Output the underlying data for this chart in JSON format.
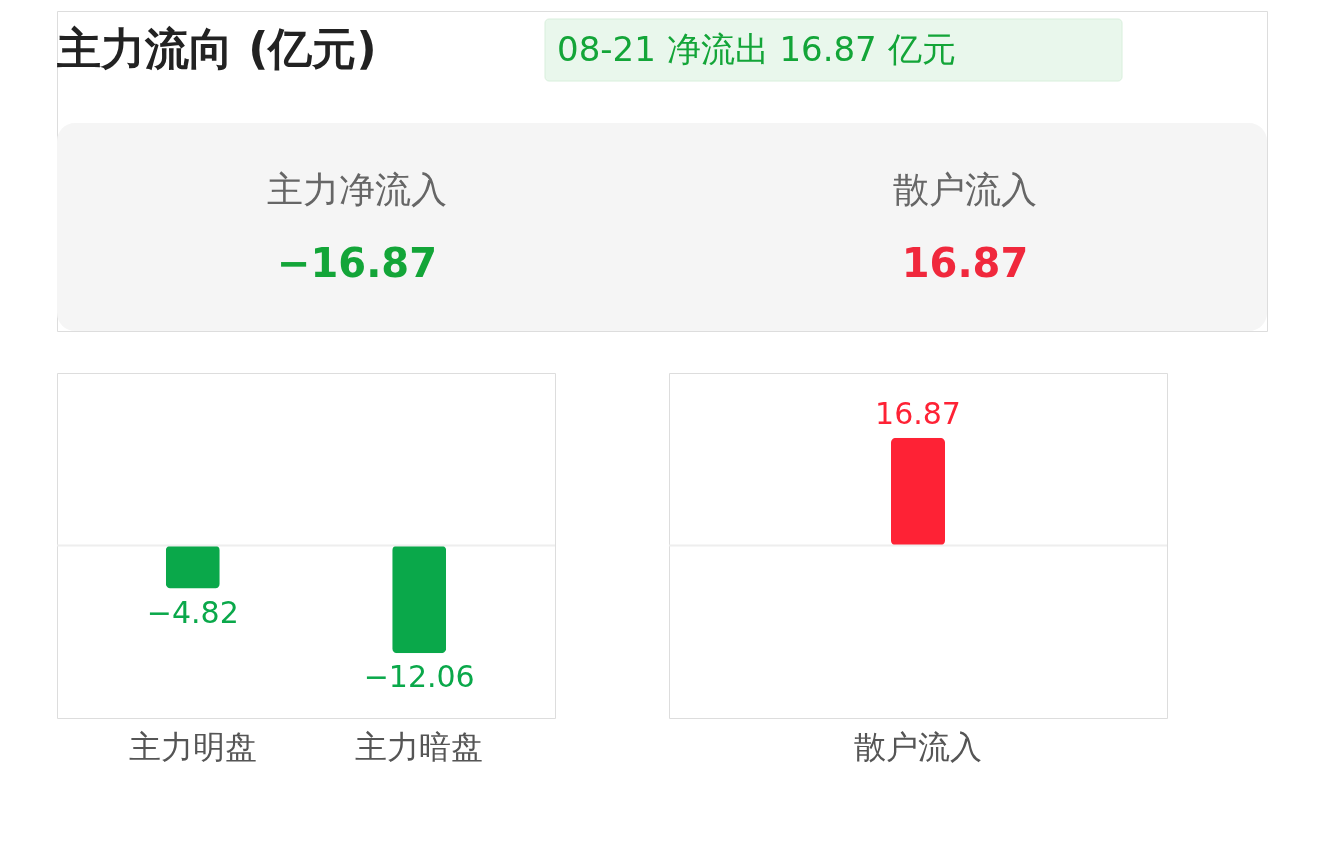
{
  "chart_data": [
    {
      "type": "other",
      "title": "主力流向 (亿元)",
      "annotations": [
        "08-21 净流出 16.87 亿元",
        "主力净流入",
        "−16.87",
        "散户流入",
        "16.87"
      ]
    },
    {
      "type": "bar",
      "categories": [
        "主力明盘",
        "主力暗盘"
      ],
      "values": [
        -4.82,
        -12.06
      ],
      "color": "#0aa84a",
      "data_labels": true,
      "ref_lines": [
        {
          "axis": "y",
          "value": 0,
          "color": "#eeeeee"
        }
      ]
    },
    {
      "type": "bar",
      "categories": [
        "散户流入"
      ],
      "values": [
        16.87
      ],
      "color": "#fe2235",
      "data_labels": true,
      "ref_lines": [
        {
          "axis": "y",
          "value": 0,
          "color": "#eeeeee"
        }
      ]
    }
  ]
}
